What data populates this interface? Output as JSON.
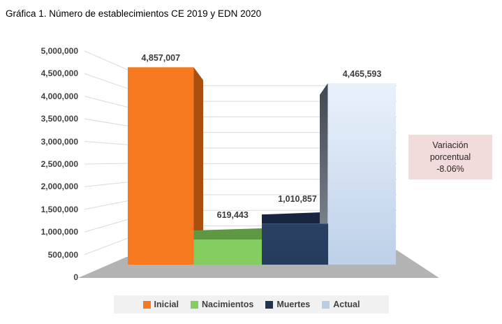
{
  "title": "Gráfica 1. Número de establecimientos CE 2019 y EDN 2020",
  "chart_data": {
    "type": "bar",
    "title": "Gráfica 1. Número de establecimientos CE 2019 y EDN 2020",
    "style": "3d-column",
    "categories": [
      "Inicial",
      "Nacimientos",
      "Muertes",
      "Actual"
    ],
    "series": [
      {
        "name": "Inicial",
        "value": 4857007,
        "label": "4,857,007",
        "color": "#F87A20",
        "side_color": "#A9500F",
        "legend_color": "#F87A20"
      },
      {
        "name": "Nacimientos",
        "value": 619443,
        "label": "619,443",
        "color": "#85CD5E",
        "top_color": "#5E9841",
        "legend_color": "#85CD5E"
      },
      {
        "name": "Muertes",
        "value": 1010857,
        "label": "1,010,857",
        "color": "#263C5E",
        "top_color": "#172540",
        "legend_color": "#21334F"
      },
      {
        "name": "Actual",
        "value": 4465593,
        "label": "4,465,593",
        "color": "#BDD0E8",
        "color_top": "#E9F2FB",
        "side_color": "#47505A",
        "legend_color": "#B9CDE3"
      }
    ],
    "ylim": [
      0,
      5000000
    ],
    "ytick_step": 500000,
    "yticks": [
      "5,000,000",
      "4,500,000",
      "4,000,000",
      "3,500,000",
      "3,000,000",
      "2,500,000",
      "2,000,000",
      "1,500,000",
      "1,000,000",
      "500,000",
      "0"
    ],
    "xlabel": "",
    "ylabel": "",
    "grid": true,
    "gridline_color": "#D9D9D9",
    "floor_color": "#B3B3B3",
    "legend_position": "bottom"
  },
  "annotation": {
    "line1": "Variación",
    "line2": "porcentual",
    "line3": "-8.06%"
  },
  "colors": {
    "axis_text": "#404040",
    "value_text": "#3B3B3B",
    "annotation_bg": "#F2DCDB",
    "legend_bg": "#F1F1F1"
  }
}
